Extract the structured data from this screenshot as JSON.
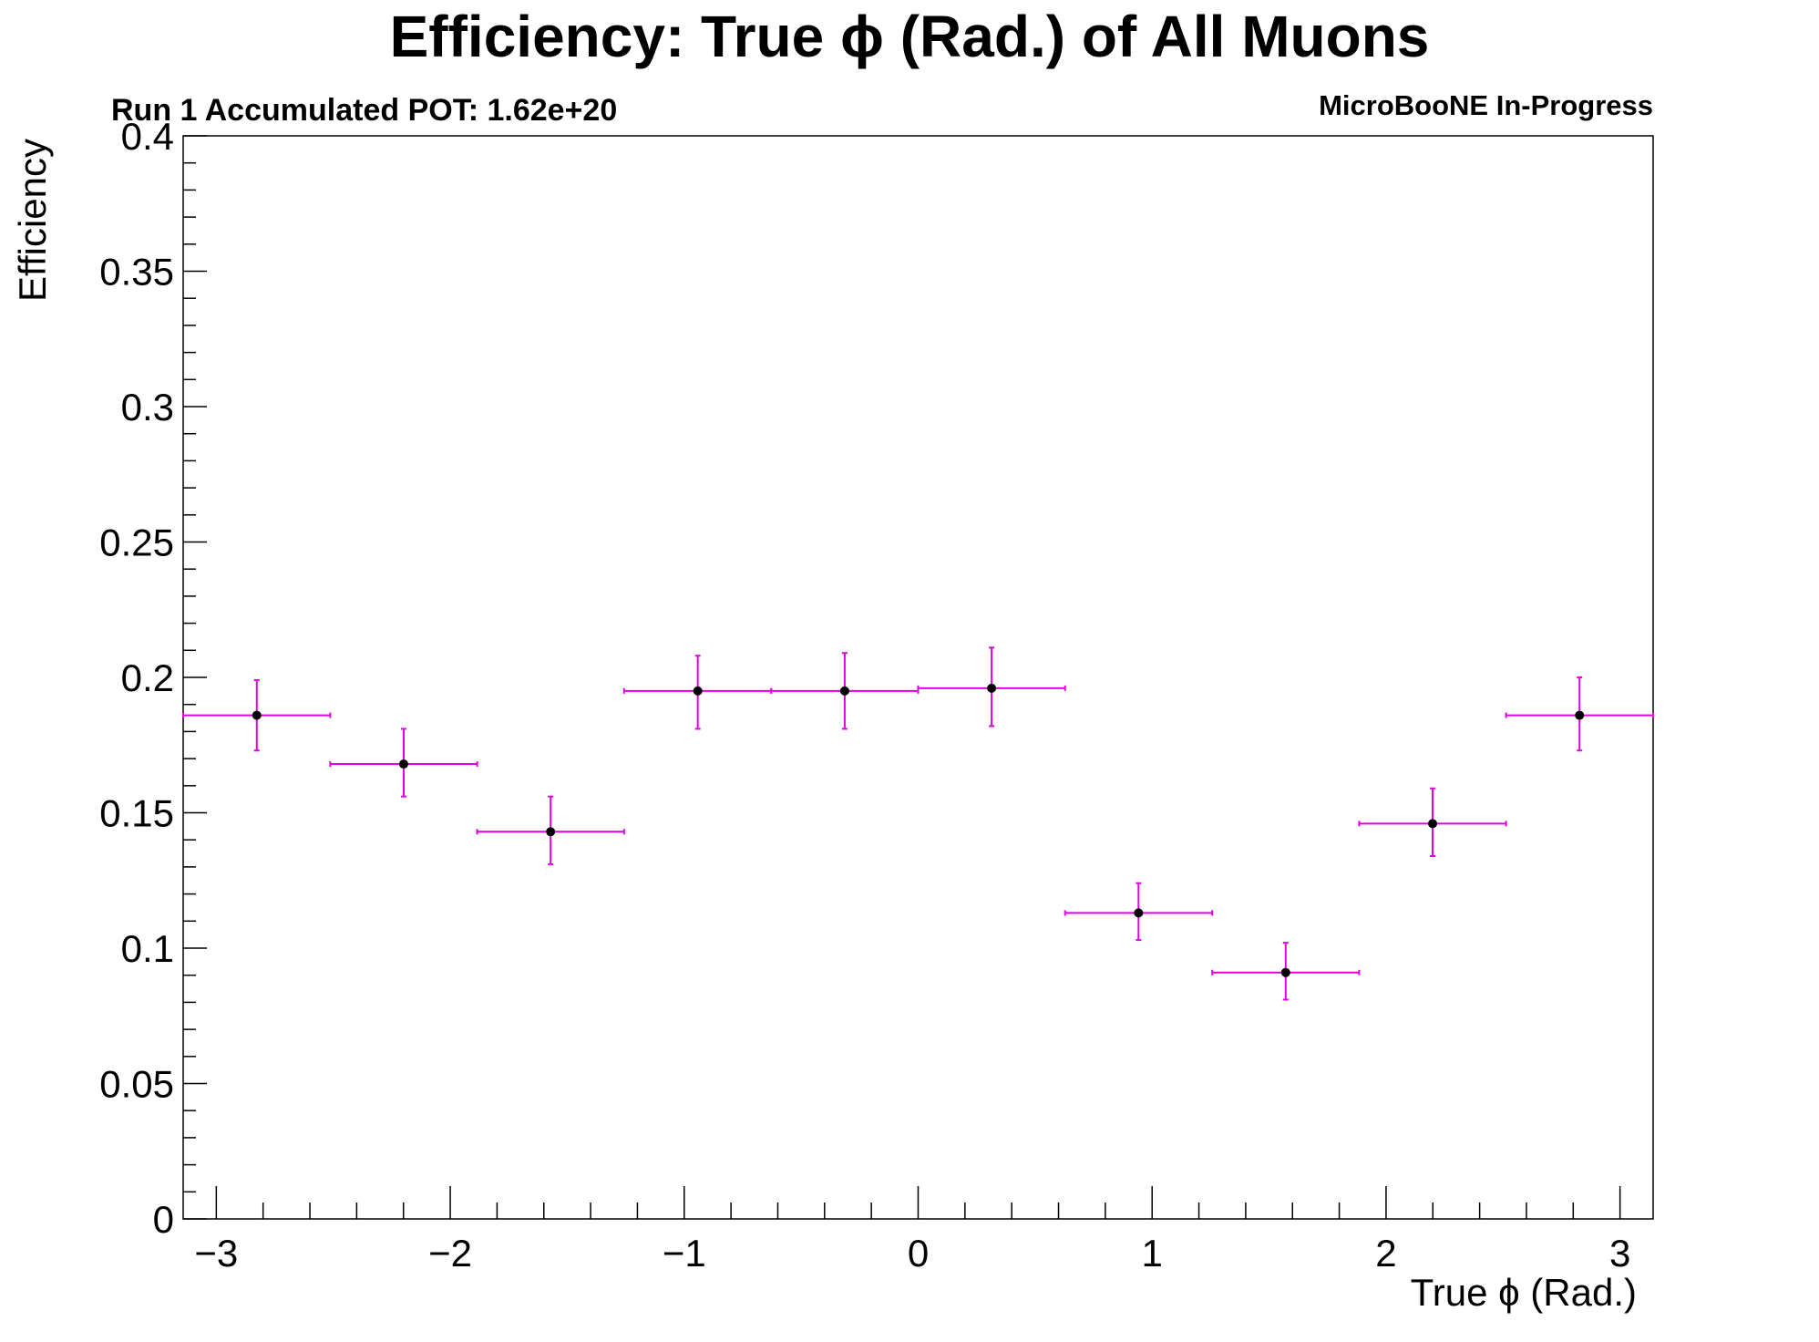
{
  "chart_data": {
    "type": "scatter",
    "title": "Efficiency: True  ϕ (Rad.) of All Muons",
    "subtitle_left": "Run 1 Accumulated POT: 1.62e+20",
    "subtitle_right": "MicroBooNE In-Progress",
    "xlabel": "True ϕ (Rad.)",
    "ylabel": "Efficiency",
    "xlim": [
      -3.1416,
      3.1416
    ],
    "ylim": [
      0,
      0.4
    ],
    "x_ticks": [
      {
        "value": -3,
        "label": "−3"
      },
      {
        "value": -2,
        "label": "−2"
      },
      {
        "value": -1,
        "label": "−1"
      },
      {
        "value": 0,
        "label": "0"
      },
      {
        "value": 1,
        "label": "1"
      },
      {
        "value": 2,
        "label": "2"
      },
      {
        "value": 3,
        "label": "3"
      }
    ],
    "y_ticks": [
      {
        "value": 0,
        "label": "0"
      },
      {
        "value": 0.05,
        "label": "0.05"
      },
      {
        "value": 0.1,
        "label": "0.1"
      },
      {
        "value": 0.15,
        "label": "0.15"
      },
      {
        "value": 0.2,
        "label": "0.2"
      },
      {
        "value": 0.25,
        "label": "0.25"
      },
      {
        "value": 0.3,
        "label": "0.3"
      },
      {
        "value": 0.35,
        "label": "0.35"
      },
      {
        "value": 0.4,
        "label": "0.4"
      }
    ],
    "grid": false,
    "series": [
      {
        "marker_color": "#000000",
        "error_color": "#e000e0",
        "points": [
          {
            "x": -2.827,
            "xlo": -3.1416,
            "xhi": -2.513,
            "y": 0.186,
            "ylo": 0.173,
            "yhi": 0.199
          },
          {
            "x": -2.199,
            "xlo": -2.513,
            "xhi": -1.885,
            "y": 0.168,
            "ylo": 0.156,
            "yhi": 0.181
          },
          {
            "x": -1.571,
            "xlo": -1.885,
            "xhi": -1.257,
            "y": 0.143,
            "ylo": 0.131,
            "yhi": 0.156
          },
          {
            "x": -0.942,
            "xlo": -1.257,
            "xhi": -0.628,
            "y": 0.195,
            "ylo": 0.181,
            "yhi": 0.208
          },
          {
            "x": -0.314,
            "xlo": -0.628,
            "xhi": 0.0,
            "y": 0.195,
            "ylo": 0.181,
            "yhi": 0.209
          },
          {
            "x": 0.314,
            "xlo": 0.0,
            "xhi": 0.628,
            "y": 0.196,
            "ylo": 0.182,
            "yhi": 0.211
          },
          {
            "x": 0.942,
            "xlo": 0.628,
            "xhi": 1.257,
            "y": 0.113,
            "ylo": 0.103,
            "yhi": 0.124
          },
          {
            "x": 1.571,
            "xlo": 1.257,
            "xhi": 1.885,
            "y": 0.091,
            "ylo": 0.081,
            "yhi": 0.102
          },
          {
            "x": 2.199,
            "xlo": 1.885,
            "xhi": 2.513,
            "y": 0.146,
            "ylo": 0.134,
            "yhi": 0.159
          },
          {
            "x": 2.827,
            "xlo": 2.513,
            "xhi": 3.1416,
            "y": 0.186,
            "ylo": 0.173,
            "yhi": 0.2
          }
        ]
      }
    ]
  }
}
